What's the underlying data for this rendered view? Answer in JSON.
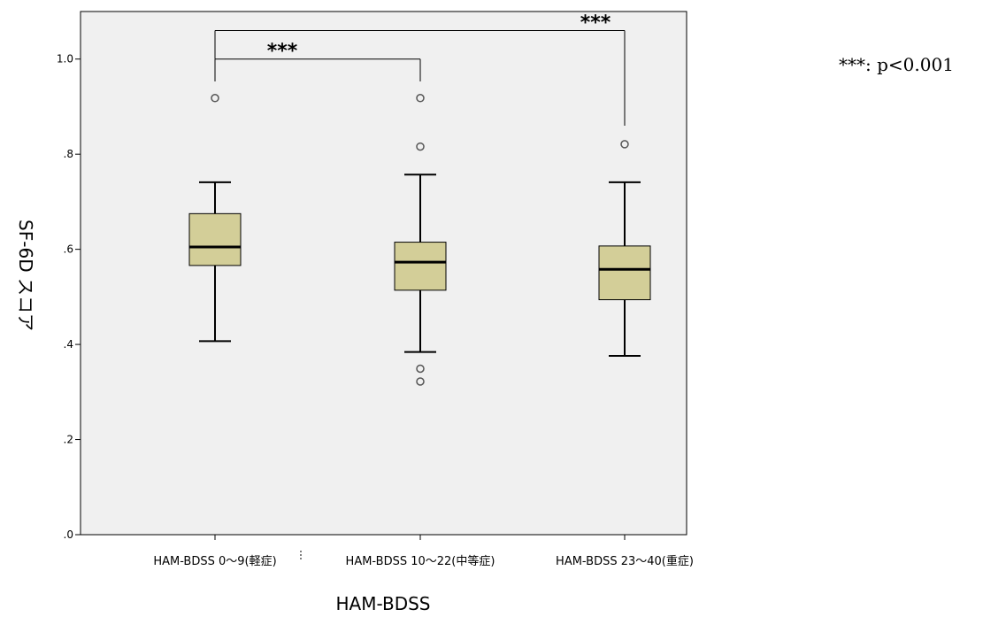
{
  "chart_data": {
    "type": "boxplot",
    "xlabel": "HAM-BDSS",
    "ylabel": "SF-6D スコア",
    "ylim": [
      0,
      1.1
    ],
    "yticks": [
      {
        "value": 0.0,
        "label": ".0"
      },
      {
        "value": 0.2,
        "label": ".2"
      },
      {
        "value": 0.4,
        "label": ".4"
      },
      {
        "value": 0.6,
        "label": ".6"
      },
      {
        "value": 0.8,
        "label": ".8"
      },
      {
        "value": 1.0,
        "label": "1.0"
      }
    ],
    "categories": [
      "HAM-BDSS 0〜9(軽症)",
      "HAM-BDSS 10〜22(中等症)",
      "HAM-BDSS 23〜40(重症)"
    ],
    "boxes": [
      {
        "whisker_low": 0.407,
        "q1": 0.566,
        "median": 0.605,
        "q3": 0.675,
        "whisker_high": 0.741,
        "outliers": [
          0.918
        ]
      },
      {
        "whisker_low": 0.384,
        "q1": 0.514,
        "median": 0.573,
        "q3": 0.615,
        "whisker_high": 0.757,
        "outliers": [
          0.918,
          0.816,
          0.349,
          0.322
        ]
      },
      {
        "whisker_low": 0.376,
        "q1": 0.494,
        "median": 0.558,
        "q3": 0.607,
        "whisker_high": 0.741,
        "outliers": [
          0.821
        ]
      }
    ],
    "significance": [
      {
        "from": 0,
        "to": 1,
        "label": "***",
        "bracket_y": 1.0,
        "from_end_y": 0.953,
        "to_end_y": 0.953
      },
      {
        "from": 0,
        "to": 2,
        "label": "***",
        "bracket_y": 1.06,
        "from_end_y": 1.0,
        "to_end_y": 0.86
      }
    ],
    "note": "***: p<0.001",
    "colors": {
      "plot_background": "#f0f0f0",
      "box_fill": "#d3ce98",
      "box_stroke": "#000000"
    },
    "grid": false,
    "legend": "none"
  }
}
